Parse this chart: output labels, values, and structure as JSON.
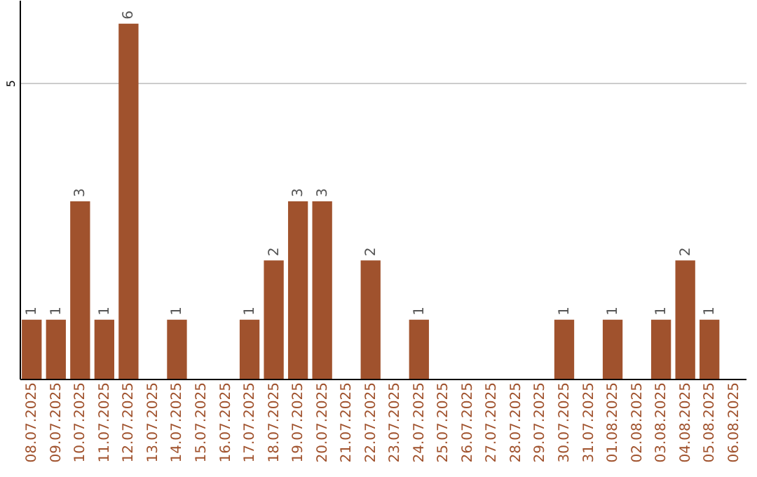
{
  "chart_data": {
    "type": "bar",
    "categories": [
      "08.07.2025",
      "09.07.2025",
      "10.07.2025",
      "11.07.2025",
      "12.07.2025",
      "13.07.2025",
      "14.07.2025",
      "15.07.2025",
      "16.07.2025",
      "17.07.2025",
      "18.07.2025",
      "19.07.2025",
      "20.07.2025",
      "21.07.2025",
      "22.07.2025",
      "23.07.2025",
      "24.07.2025",
      "25.07.2025",
      "26.07.2025",
      "27.07.2025",
      "28.07.2025",
      "29.07.2025",
      "30.07.2025",
      "31.07.2025",
      "01.08.2025",
      "02.08.2025",
      "03.08.2025",
      "04.08.2025",
      "05.08.2025",
      "06.08.2025"
    ],
    "values": [
      1,
      1,
      3,
      1,
      6,
      0,
      1,
      0,
      0,
      1,
      2,
      3,
      3,
      0,
      2,
      0,
      1,
      0,
      0,
      0,
      0,
      0,
      1,
      0,
      1,
      0,
      1,
      2,
      1,
      0
    ],
    "value_labels": [
      "1",
      "1",
      "3",
      "1",
      "6",
      null,
      "1",
      null,
      null,
      "1",
      "2",
      "3",
      "3",
      null,
      "2",
      null,
      "1",
      null,
      null,
      null,
      null,
      null,
      "1",
      null,
      "1",
      null,
      "1",
      "2",
      "1",
      null
    ],
    "color": "#a0522d",
    "ylim": [
      0,
      6.4
    ],
    "yticks": [
      5
    ],
    "grid": "y"
  }
}
